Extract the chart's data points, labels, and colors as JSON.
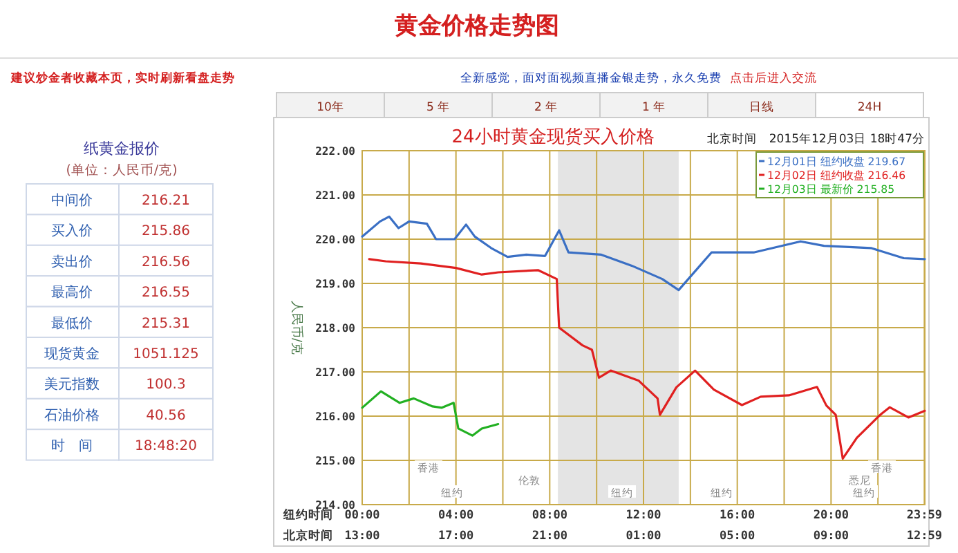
{
  "chart_data": [
    {
      "type": "other",
      "title": "黄金价格走势图",
      "annotations": [
        "建议炒金者收藏本页，实时刷新看盘走势",
        "全新感觉，面对面视频直播金银走势，永久免费",
        "点击后进入交流"
      ],
      "categories": [
        "10年",
        "5 年",
        "2 年",
        "1 年",
        "日线",
        "24H"
      ]
    },
    {
      "type": "other",
      "title": "纸黄金报价",
      "subtitle": "(单位：人民币/克)",
      "categories": [
        "中间价",
        "买入价",
        "卖出价",
        "最高价",
        "最低价",
        "现货黄金",
        "美元指数",
        "石油价格",
        "时　间"
      ],
      "value_labels": [
        "216.21",
        "215.86",
        "216.56",
        "216.55",
        "215.31",
        "1051.125",
        "100.3",
        "40.56",
        "18:48:20"
      ]
    },
    {
      "type": "line",
      "title": "24小时黄金现货买入价格",
      "subtitle": "北京时间　2015年12月03日 18时47分",
      "ylabel": "人民币/克",
      "xlabel": "纽约时间",
      "x2label": "北京时间",
      "xlim": [
        0,
        24
      ],
      "xticks": [
        {
          "value": 0,
          "label": "00:00"
        },
        {
          "value": 2,
          "label": null
        },
        {
          "value": 4,
          "label": "04:00"
        },
        {
          "value": 6,
          "label": null
        },
        {
          "value": 8,
          "label": "08:00"
        },
        {
          "value": 10,
          "label": null
        },
        {
          "value": 12,
          "label": "12:00"
        },
        {
          "value": 14,
          "label": null
        },
        {
          "value": 16,
          "label": "16:00"
        },
        {
          "value": 18,
          "label": null
        },
        {
          "value": 20,
          "label": "20:00"
        },
        {
          "value": 22,
          "label": null
        },
        {
          "value": 23.98,
          "label": "23:59"
        }
      ],
      "ylim": [
        214,
        222
      ],
      "yticks": [
        {
          "value": 214,
          "label": "214.00"
        },
        {
          "value": 215,
          "label": "215.00"
        },
        {
          "value": 216,
          "label": "216.00"
        },
        {
          "value": 217,
          "label": "217.00"
        },
        {
          "value": 218,
          "label": "218.00"
        },
        {
          "value": 219,
          "label": "219.00"
        },
        {
          "value": 220,
          "label": "220.00"
        },
        {
          "value": 221,
          "label": "221.00"
        },
        {
          "value": 222,
          "label": "222.00"
        }
      ],
      "grid": true,
      "legend": "top right",
      "marker": "none",
      "line_style": "solid",
      "bands": [
        {
          "axis": "x",
          "from": 8.35,
          "to": 13.5,
          "color": "#e4e4e4"
        }
      ],
      "annotations": [
        "13:00",
        "17:00",
        "21:00",
        "01:00",
        "05:00",
        "09:00",
        "12:59",
        "香港",
        "伦敦",
        "纽约",
        "纽约",
        "纽约",
        "香港",
        "悉尼",
        "纽约"
      ],
      "series": [
        {
          "name": "12月01日 纽约收盘 219.67",
          "color": "#3a6fc4",
          "x": [
            0,
            0.76,
            1.15,
            1.55,
            2,
            2.76,
            3.15,
            3.94,
            4.43,
            4.8,
            5.5,
            6.2,
            7,
            7.8,
            8.4,
            8.8,
            10.2,
            11.5,
            12.8,
            13.5,
            14.9,
            16.7,
            18.7,
            19.7,
            21.7,
            23.1,
            24
          ],
          "values": [
            220.06,
            220.4,
            220.51,
            220.25,
            220.4,
            220.35,
            220,
            220,
            220.33,
            220.06,
            219.8,
            219.6,
            219.65,
            219.62,
            220.2,
            219.7,
            219.65,
            219.4,
            219.1,
            218.85,
            219.7,
            219.7,
            219.95,
            219.85,
            219.8,
            219.57,
            219.55
          ]
        },
        {
          "name": "12月02日 纽约收盘 216.46",
          "color": "#e02020",
          "x": [
            0.3,
            1,
            2.5,
            4,
            5.1,
            5.8,
            7.5,
            8.3,
            8.4,
            9.4,
            9.8,
            10.1,
            10.6,
            11.8,
            12.6,
            12.7,
            13.4,
            14.2,
            15,
            16.2,
            17,
            18.2,
            19.4,
            19.8,
            20.2,
            20.5,
            21.1,
            22.1,
            22.5,
            23.3,
            24
          ],
          "values": [
            219.55,
            219.5,
            219.45,
            219.35,
            219.2,
            219.25,
            219.3,
            219.1,
            218,
            217.6,
            217.5,
            216.87,
            217.03,
            216.8,
            216.4,
            216.03,
            216.65,
            217.03,
            216.6,
            216.25,
            216.44,
            216.47,
            216.66,
            216.24,
            216.03,
            215.04,
            215.51,
            216.03,
            216.2,
            215.97,
            216.12
          ]
        },
        {
          "name": "12月03日 最新价 215.85",
          "color": "#22b022",
          "x": [
            0,
            0.8,
            1.6,
            2.2,
            3,
            3.4,
            3.9,
            4.1,
            4.7,
            5.1,
            5.8
          ],
          "values": [
            216.19,
            216.56,
            216.3,
            216.4,
            216.22,
            216.19,
            216.3,
            215.72,
            215.56,
            215.72,
            215.82
          ]
        }
      ]
    }
  ]
}
